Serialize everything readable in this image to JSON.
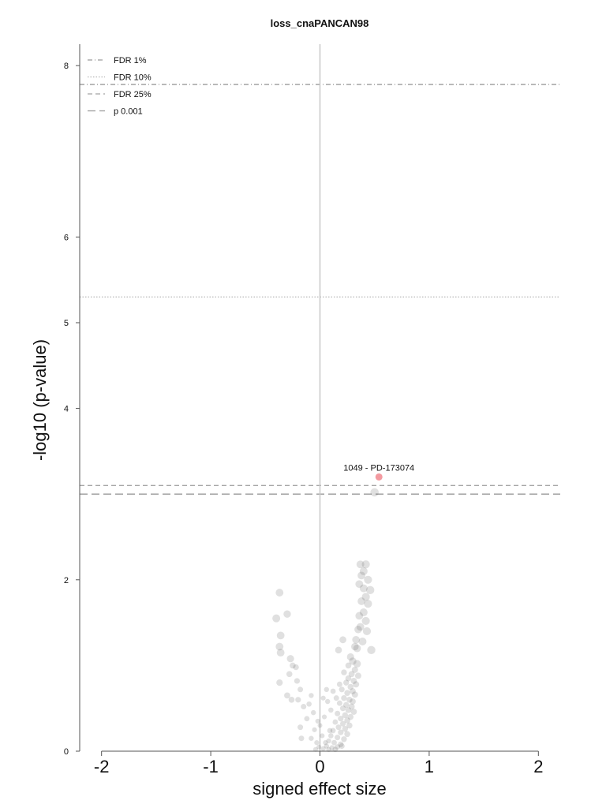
{
  "chart_data": {
    "type": "scatter",
    "title": "loss_cnaPANCAN98",
    "xlabel": "signed effect size",
    "ylabel": "-log10 (p-value)",
    "xlim": [
      -2.2,
      2.2
    ],
    "ylim": [
      0,
      8.25
    ],
    "x_ticks": [
      -2,
      -1,
      0,
      1,
      2
    ],
    "x_tick_labels": [
      "-2",
      "-1",
      "0",
      "1",
      "2"
    ],
    "y_ticks": [
      0,
      2,
      4,
      5,
      6,
      8
    ],
    "y_tick_labels": [
      "0",
      "2",
      "4",
      "5",
      "6",
      "8"
    ],
    "grid": false,
    "legend_position": "top-left",
    "thresholds": [
      {
        "label": "FDR 1%",
        "y": 7.78,
        "dash": "dashdot",
        "color": "#9a9a9a"
      },
      {
        "label": "FDR 10%",
        "y": 5.3,
        "dash": "dotted",
        "color": "#b5b5b5"
      },
      {
        "label": "FDR 25%",
        "y": 3.1,
        "dash": "dashed",
        "color": "#a5a5a5"
      },
      {
        "label": "p 0.001",
        "y": 3.0,
        "dash": "longdash",
        "color": "#9a9a9a"
      }
    ],
    "vline_x": 0,
    "highlight": {
      "label": "1049 - PD-173074",
      "x": 0.54,
      "y": 3.2,
      "color": "#f39aa0"
    },
    "points": [
      [
        0.5,
        3.02
      ],
      [
        0.37,
        2.18
      ],
      [
        0.42,
        2.18
      ],
      [
        0.4,
        2.1
      ],
      [
        0.38,
        2.05
      ],
      [
        0.44,
        2.0
      ],
      [
        0.36,
        1.95
      ],
      [
        0.4,
        1.9
      ],
      [
        0.46,
        1.88
      ],
      [
        0.42,
        1.8
      ],
      [
        0.38,
        1.75
      ],
      [
        0.44,
        1.72
      ],
      [
        0.4,
        1.62
      ],
      [
        0.36,
        1.58
      ],
      [
        0.42,
        1.52
      ],
      [
        0.37,
        1.45
      ],
      [
        0.35,
        1.42
      ],
      [
        0.43,
        1.4
      ],
      [
        0.33,
        1.3
      ],
      [
        0.39,
        1.28
      ],
      [
        0.21,
        1.3
      ],
      [
        0.32,
        1.22
      ],
      [
        0.34,
        1.2
      ],
      [
        0.47,
        1.18
      ],
      [
        0.17,
        1.18
      ],
      [
        0.28,
        1.1
      ],
      [
        0.3,
        1.05
      ],
      [
        0.34,
        1.02
      ],
      [
        0.26,
        1.0
      ],
      [
        0.32,
        0.95
      ],
      [
        0.22,
        0.92
      ],
      [
        0.29,
        0.9
      ],
      [
        0.35,
        0.88
      ],
      [
        0.26,
        0.85
      ],
      [
        0.31,
        0.82
      ],
      [
        0.24,
        0.8
      ],
      [
        0.33,
        0.78
      ],
      [
        0.28,
        0.75
      ],
      [
        0.2,
        0.72
      ],
      [
        0.3,
        0.7
      ],
      [
        0.25,
        0.68
      ],
      [
        0.32,
        0.66
      ],
      [
        0.22,
        0.62
      ],
      [
        0.27,
        0.6
      ],
      [
        0.3,
        0.58
      ],
      [
        0.18,
        0.56
      ],
      [
        0.24,
        0.54
      ],
      [
        0.29,
        0.52
      ],
      [
        0.21,
        0.5
      ],
      [
        0.26,
        0.48
      ],
      [
        0.31,
        0.46
      ],
      [
        0.16,
        0.44
      ],
      [
        0.23,
        0.42
      ],
      [
        0.28,
        0.4
      ],
      [
        0.19,
        0.38
      ],
      [
        0.25,
        0.36
      ],
      [
        0.14,
        0.34
      ],
      [
        0.21,
        0.32
      ],
      [
        0.27,
        0.3
      ],
      [
        0.17,
        0.28
      ],
      [
        0.23,
        0.26
      ],
      [
        0.12,
        0.24
      ],
      [
        0.19,
        0.22
      ],
      [
        0.25,
        0.2
      ],
      [
        0.1,
        0.18
      ],
      [
        0.16,
        0.16
      ],
      [
        0.22,
        0.14
      ],
      [
        0.08,
        0.12
      ],
      [
        0.13,
        0.1
      ],
      [
        0.19,
        0.08
      ],
      [
        0.06,
        0.06
      ],
      [
        0.11,
        0.04
      ],
      [
        0.16,
        0.05
      ],
      [
        0.03,
        0.03
      ],
      [
        0.08,
        0.02
      ],
      [
        0.14,
        0.02
      ],
      [
        0.2,
        0.06
      ],
      [
        0.05,
        0.1
      ],
      [
        0.02,
        0.18
      ],
      [
        0.09,
        0.24
      ],
      [
        0.0,
        0.3
      ],
      [
        0.04,
        0.4
      ],
      [
        0.1,
        0.48
      ],
      [
        0.07,
        0.58
      ],
      [
        0.15,
        0.62
      ],
      [
        0.12,
        0.7
      ],
      [
        0.18,
        0.78
      ],
      [
        -0.02,
        0.35
      ],
      [
        -0.05,
        0.25
      ],
      [
        -0.03,
        0.1
      ],
      [
        -0.01,
        0.05
      ],
      [
        -0.06,
        0.45
      ],
      [
        -0.1,
        0.55
      ],
      [
        -0.15,
        0.52
      ],
      [
        -0.08,
        0.65
      ],
      [
        -0.12,
        0.38
      ],
      [
        -0.18,
        0.28
      ],
      [
        -0.2,
        0.6
      ],
      [
        -0.26,
        0.6
      ],
      [
        -0.3,
        0.65
      ],
      [
        -0.37,
        0.8
      ],
      [
        -0.18,
        0.72
      ],
      [
        -0.21,
        0.82
      ],
      [
        -0.28,
        0.9
      ],
      [
        -0.25,
        1.0
      ],
      [
        -0.22,
        0.98
      ],
      [
        -0.27,
        1.08
      ],
      [
        -0.36,
        1.15
      ],
      [
        -0.37,
        1.22
      ],
      [
        -0.36,
        1.35
      ],
      [
        -0.3,
        1.6
      ],
      [
        -0.4,
        1.55
      ],
      [
        -0.37,
        1.85
      ],
      [
        0.03,
        0.62
      ],
      [
        0.06,
        0.72
      ],
      [
        -0.08,
        0.15
      ],
      [
        -0.17,
        0.15
      ],
      [
        -0.04,
        0.02
      ]
    ]
  }
}
